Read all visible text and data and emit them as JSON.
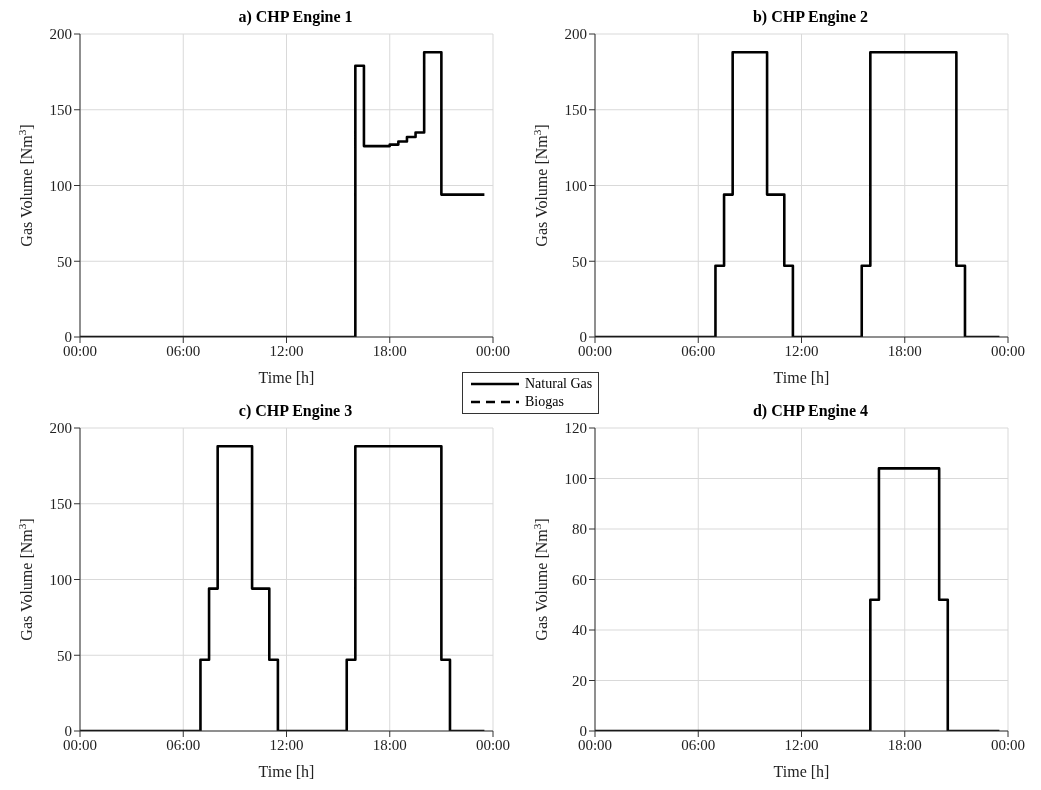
{
  "chart_data": [
    {
      "type": "step",
      "title": "a) CHP Engine 1",
      "xlabel": "Time [h]",
      "ylabel": "Gas Volume [Nm$^{3}$]",
      "xlim": [
        0,
        24
      ],
      "xticks": [
        {
          "value": 0,
          "label": "00:00"
        },
        {
          "value": 6,
          "label": "06:00"
        },
        {
          "value": 12,
          "label": "12:00"
        },
        {
          "value": 18,
          "label": "18:00"
        },
        {
          "value": 24,
          "label": "00:00"
        }
      ],
      "ylim": [
        0,
        200
      ],
      "yticks": [
        0,
        50,
        100,
        150,
        200
      ],
      "grid": true,
      "legend": "bottom right",
      "x": [
        0,
        16,
        16.5,
        18,
        18.5,
        19,
        19.5,
        20,
        21,
        23.5
      ],
      "series": [
        {
          "name": "Natural Gas",
          "color": "#000000",
          "line_style": "solid",
          "values": [
            0,
            179,
            126,
            127,
            129,
            132,
            135,
            188,
            94,
            94
          ]
        },
        {
          "name": "Biogas",
          "color": "#000000",
          "line_style": "dashed",
          "values": [
            null,
            null,
            null,
            null,
            null,
            null,
            null,
            null,
            null,
            null
          ]
        }
      ]
    },
    {
      "type": "step",
      "title": "b) CHP Engine 2",
      "xlabel": "Time [h]",
      "ylabel": "Gas Volume [Nm$^{3}$]",
      "xlim": [
        0,
        24
      ],
      "xticks": [
        {
          "value": 0,
          "label": "00:00"
        },
        {
          "value": 6,
          "label": "06:00"
        },
        {
          "value": 12,
          "label": "12:00"
        },
        {
          "value": 18,
          "label": "18:00"
        },
        {
          "value": 24,
          "label": "00:00"
        }
      ],
      "ylim": [
        0,
        200
      ],
      "yticks": [
        0,
        50,
        100,
        150,
        200
      ],
      "grid": true,
      "x": [
        0,
        7,
        7.5,
        8,
        10,
        11,
        11.5,
        15.5,
        16,
        21,
        21.5,
        23.5
      ],
      "series": [
        {
          "color": "#000000",
          "line_style": "solid",
          "values": [
            0,
            47,
            94,
            188,
            94,
            47,
            0,
            47,
            188,
            47,
            0,
            0
          ]
        },
        {
          "color": "#000000",
          "line_style": "dashed",
          "values": [
            null,
            null,
            null,
            null,
            null,
            null,
            null,
            null,
            null,
            null,
            null,
            null
          ]
        }
      ]
    },
    {
      "type": "step",
      "title": "c) CHP Engine 3",
      "xlabel": "Time [h]",
      "ylabel": "Gas Volume [Nm$^{3}$]",
      "xlim": [
        0,
        24
      ],
      "xticks": [
        {
          "value": 0,
          "label": "00:00"
        },
        {
          "value": 6,
          "label": "06:00"
        },
        {
          "value": 12,
          "label": "12:00"
        },
        {
          "value": 18,
          "label": "18:00"
        },
        {
          "value": 24,
          "label": "00:00"
        }
      ],
      "ylim": [
        0,
        200
      ],
      "yticks": [
        0,
        50,
        100,
        150,
        200
      ],
      "grid": true,
      "x": [
        0,
        7,
        7.5,
        8,
        10,
        11,
        11.5,
        15.5,
        16,
        21,
        21.5,
        23.5
      ],
      "series": [
        {
          "color": "#000000",
          "line_style": "solid",
          "values": [
            0,
            47,
            94,
            188,
            94,
            47,
            0,
            47,
            188,
            47,
            0,
            0
          ]
        },
        {
          "color": "#000000",
          "line_style": "dashed",
          "values": [
            null,
            null,
            null,
            null,
            null,
            null,
            null,
            null,
            null,
            null,
            null,
            null
          ]
        }
      ]
    },
    {
      "type": "step",
      "title": "d) CHP Engine 4",
      "xlabel": "Time [h]",
      "ylabel": "Gas Volume [Nm$^{3}$]",
      "xlim": [
        0,
        24
      ],
      "xticks": [
        {
          "value": 0,
          "label": "00:00"
        },
        {
          "value": 6,
          "label": "06:00"
        },
        {
          "value": 12,
          "label": "12:00"
        },
        {
          "value": 18,
          "label": "18:00"
        },
        {
          "value": 24,
          "label": "00:00"
        }
      ],
      "ylim": [
        0,
        120
      ],
      "yticks": [
        0,
        20,
        40,
        60,
        80,
        100,
        120
      ],
      "grid": true,
      "x": [
        0,
        16,
        16.5,
        20,
        20.5,
        23.5
      ],
      "series": [
        {
          "color": "#000000",
          "line_style": "solid",
          "values": [
            0,
            52,
            104,
            52,
            0,
            0
          ]
        },
        {
          "color": "#000000",
          "line_style": "dashed",
          "values": [
            null,
            null,
            null,
            null,
            null,
            null
          ]
        }
      ]
    }
  ]
}
